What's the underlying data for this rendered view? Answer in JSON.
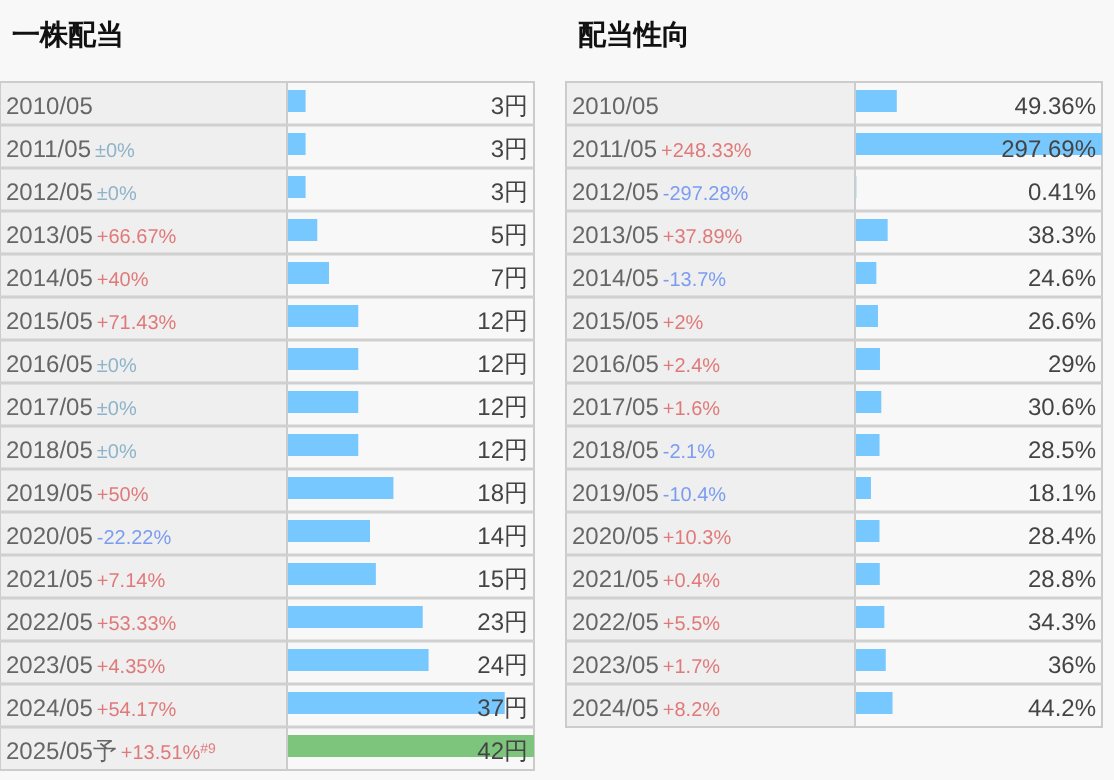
{
  "chart_data": [
    {
      "type": "bar",
      "orientation": "horizontal",
      "title": "一株配当",
      "data_labels": true,
      "categories": [
        "2010/05",
        "2011/05",
        "2012/05",
        "2013/05",
        "2014/05",
        "2015/05",
        "2016/05",
        "2017/05",
        "2018/05",
        "2019/05",
        "2020/05",
        "2021/05",
        "2022/05",
        "2023/05",
        "2024/05",
        "2025/05予"
      ],
      "values": [
        3,
        3,
        3,
        5,
        7,
        12,
        12,
        12,
        12,
        18,
        14,
        15,
        23,
        24,
        37,
        42
      ],
      "value_labels": [
        "3円",
        "3円",
        "3円",
        "5円",
        "7円",
        "12円",
        "12円",
        "12円",
        "12円",
        "18円",
        "14円",
        "15円",
        "23円",
        "24円",
        "37円",
        "42円"
      ],
      "colors": [
        "#77c8ff",
        "#77c8ff",
        "#77c8ff",
        "#77c8ff",
        "#77c8ff",
        "#77c8ff",
        "#77c8ff",
        "#77c8ff",
        "#77c8ff",
        "#77c8ff",
        "#77c8ff",
        "#77c8ff",
        "#77c8ff",
        "#77c8ff",
        "#77c8ff",
        "#7dc57d"
      ],
      "annotations": [
        "±0%",
        "±0%",
        "+66.67%",
        "+40%",
        "+71.43%",
        "±0%",
        "±0%",
        "±0%",
        "+50%",
        "-22.22%",
        "+7.14%",
        "+53.33%",
        "+4.35%",
        "+54.17%",
        "+13.51%$^{#9}$"
      ]
    },
    {
      "type": "bar",
      "orientation": "horizontal",
      "title": "配当性向",
      "data_labels": true,
      "categories": [
        "2010/05",
        "2011/05",
        "2012/05",
        "2013/05",
        "2014/05",
        "2015/05",
        "2016/05",
        "2017/05",
        "2018/05",
        "2019/05",
        "2020/05",
        "2021/05",
        "2022/05",
        "2023/05",
        "2024/05"
      ],
      "values": [
        49.36,
        297.69,
        0.41,
        38.3,
        24.6,
        26.6,
        29,
        30.6,
        28.5,
        18.1,
        28.4,
        28.8,
        34.3,
        36,
        44.2
      ],
      "value_labels": [
        "49.36%",
        "297.69%",
        "0.41%",
        "38.3%",
        "24.6%",
        "26.6%",
        "29%",
        "30.6%",
        "28.5%",
        "18.1%",
        "28.4%",
        "28.8%",
        "34.3%",
        "36%",
        "44.2%"
      ],
      "color": "#77c8ff",
      "annotations": [
        "+248.33%",
        "-297.28%",
        "+37.89%",
        "-13.7%",
        "+2%",
        "+2.4%",
        "+1.6%",
        "-2.1%",
        "-10.4%",
        "+10.3%",
        "+0.4%",
        "+5.5%",
        "+1.7%",
        "+8.2%"
      ]
    }
  ]
}
